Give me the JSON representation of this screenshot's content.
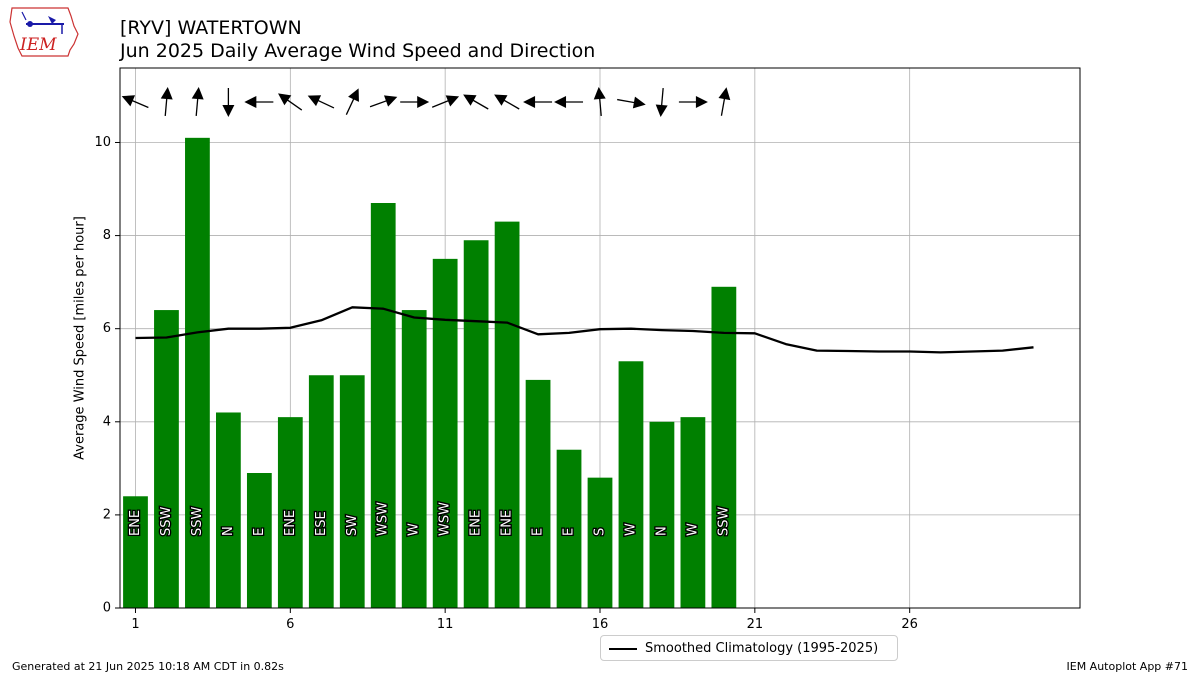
{
  "logo_text": "IEM",
  "chart_data": {
    "type": "bar",
    "title": "[RYV] WATERTOWN",
    "subtitle": "Jun 2025 Daily Average Wind Speed and Direction",
    "xlabel": "",
    "ylabel": "Average Wind Speed [miles per hour]",
    "xlim": [
      0.5,
      31.5
    ],
    "ylim": [
      0,
      11.6
    ],
    "x_ticks": [
      1,
      6,
      11,
      16,
      21,
      26
    ],
    "y_ticks": [
      0,
      2,
      4,
      6,
      8,
      10
    ],
    "grid": true,
    "legend_position": "bottom-center, below plot",
    "bar_color": "#008000",
    "series": [
      {
        "kind": "bar",
        "days": [
          1,
          2,
          3,
          4,
          5,
          6,
          7,
          8,
          9,
          10,
          11,
          12,
          13,
          14,
          15,
          16,
          17,
          18,
          19,
          20
        ],
        "values": [
          2.4,
          6.4,
          10.1,
          4.2,
          2.9,
          4.1,
          5.0,
          5.0,
          8.7,
          6.4,
          7.5,
          7.9,
          8.3,
          4.9,
          3.4,
          2.8,
          5.3,
          4.0,
          4.1,
          6.9
        ],
        "directions": [
          "ENE",
          "SSW",
          "SSW",
          "N",
          "E",
          "ENE",
          "ESE",
          "SW",
          "WSW",
          "W",
          "WSW",
          "ENE",
          "ENE",
          "E",
          "E",
          "S",
          "W",
          "N",
          "W",
          "SSW"
        ],
        "arrow_angles_deg": [
          -157,
          -85,
          -85,
          90,
          180,
          -145,
          -155,
          -65,
          -20,
          0,
          -22,
          -150,
          -150,
          180,
          180,
          -95,
          10,
          95,
          0,
          -80
        ]
      },
      {
        "kind": "line",
        "name": "Smoothed Climatology (1995-2025)",
        "color": "#000000",
        "days": [
          1,
          2,
          3,
          4,
          5,
          6,
          7,
          8,
          9,
          10,
          11,
          12,
          13,
          14,
          15,
          16,
          17,
          18,
          19,
          20,
          21,
          22,
          23,
          24,
          25,
          26,
          27,
          28,
          29,
          30
        ],
        "values": [
          5.8,
          5.81,
          5.92,
          6.0,
          6.0,
          6.02,
          6.18,
          6.46,
          6.43,
          6.24,
          6.19,
          6.16,
          6.13,
          5.88,
          5.91,
          5.99,
          6.0,
          5.97,
          5.95,
          5.91,
          5.9,
          5.67,
          5.53,
          5.52,
          5.51,
          5.51,
          5.49,
          5.51,
          5.53,
          5.6
        ]
      }
    ]
  },
  "footer_left": "Generated at 21 Jun 2025 10:18 AM CDT in 0.82s",
  "footer_right": "IEM Autoplot App #71"
}
